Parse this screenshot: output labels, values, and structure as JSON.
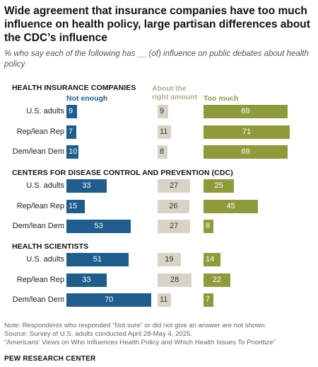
{
  "title": "Wide agreement that insurance companies have too much influence on health policy, large partisan differences about the CDC’s influence",
  "subtitle": "% who say each of the following has __ (of) influence on public debates about health policy",
  "colors": {
    "not_enough": "#1f5d8c",
    "right_amount": "#d8d4c5",
    "too_much": "#8f9a3b",
    "right_amount_text": "#b3ad93"
  },
  "chart_data": {
    "type": "bar",
    "columns": [
      "Not enough",
      "About the right amount",
      "Too much"
    ],
    "column_labels": {
      "not_enough": "Not enough",
      "right_amount_line1": "About the",
      "right_amount_line2": "right amount",
      "too_much": "Too much"
    },
    "groups": [
      {
        "name": "HEALTH INSURANCE COMPANIES",
        "rows": [
          {
            "label": "U.S. adults",
            "not_enough": 9,
            "right_amount": 9,
            "too_much": 69
          },
          {
            "label": "Rep/lean Rep",
            "not_enough": 7,
            "right_amount": 11,
            "too_much": 71
          },
          {
            "label": "Dem/lean Dem",
            "not_enough": 10,
            "right_amount": 8,
            "too_much": 69
          }
        ]
      },
      {
        "name": "CENTERS FOR DISEASE CONTROL AND PREVENTION (CDC)",
        "rows": [
          {
            "label": "U.S. adults",
            "not_enough": 33,
            "right_amount": 27,
            "too_much": 25
          },
          {
            "label": "Rep/lean Rep",
            "not_enough": 15,
            "right_amount": 26,
            "too_much": 45
          },
          {
            "label": "Dem/lean Dem",
            "not_enough": 53,
            "right_amount": 27,
            "too_much": 8
          }
        ]
      },
      {
        "name": "HEALTH SCIENTISTS",
        "rows": [
          {
            "label": "U.S. adults",
            "not_enough": 51,
            "right_amount": 19,
            "too_much": 14
          },
          {
            "label": "Rep/lean Rep",
            "not_enough": 33,
            "right_amount": 28,
            "too_much": 22
          },
          {
            "label": "Dem/lean Dem",
            "not_enough": 70,
            "right_amount": 11,
            "too_much": 7
          }
        ]
      }
    ]
  },
  "notes": {
    "note": "Note: Respondents who responded “Not sure” or did not give an answer are not shown.",
    "source": "Source: Survey of U.S. adults conducted April 28-May 4, 2025.",
    "report": "“Americans’ Views on Who Influences Health Policy and Which Health Issues To Prioritize”"
  },
  "footer": {
    "org": "PEW RESEARCH CENTER"
  }
}
